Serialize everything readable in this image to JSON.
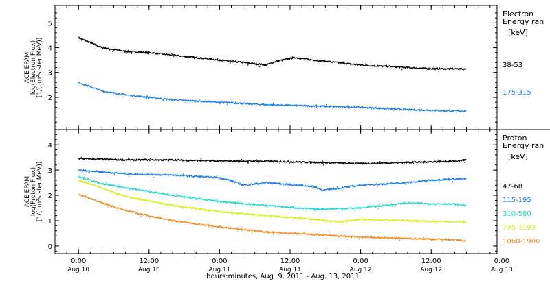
{
  "chart_data": [
    {
      "type": "line",
      "ylabel_lines": [
        "ACE EPAM",
        "log(Electron Flux)",
        "[1/(cm²s ster MeV)]"
      ],
      "ylim": [
        0.7,
        5.7
      ],
      "yticks": [
        2,
        3,
        4,
        5
      ],
      "legend": {
        "title_lines": [
          "Electron",
          "Energy ran"
        ],
        "units": "[keV]"
      },
      "series": [
        {
          "name": "38-53",
          "color": "#000000",
          "x": [
            0,
            0.5,
            1,
            1.5,
            2,
            2.5,
            3,
            3.5,
            4,
            4.2,
            4.6,
            5,
            5.5,
            6,
            6.5,
            7,
            7.5,
            8,
            8.25
          ],
          "y": [
            4.4,
            4.0,
            3.85,
            3.8,
            3.7,
            3.6,
            3.5,
            3.4,
            3.3,
            3.45,
            3.6,
            3.5,
            3.4,
            3.3,
            3.25,
            3.2,
            3.15,
            3.15,
            3.15
          ]
        },
        {
          "name": "175-315",
          "color": "#1f7fe0",
          "x": [
            0,
            0.5,
            1,
            1.5,
            2,
            3,
            4,
            5,
            6,
            7,
            8,
            8.25
          ],
          "y": [
            2.6,
            2.25,
            2.1,
            2.0,
            1.9,
            1.8,
            1.7,
            1.65,
            1.6,
            1.5,
            1.45,
            1.45
          ]
        }
      ]
    },
    {
      "type": "line",
      "ylabel_lines": [
        "ACE EPAM",
        "log(Proton Flux)",
        "[1/(cm²s ster MeV)]"
      ],
      "ylim": [
        -0.3,
        4.6
      ],
      "yticks": [
        0,
        1,
        2,
        3,
        4
      ],
      "legend": {
        "title_lines": [
          "Proton",
          "Energy ran"
        ],
        "units": "[keV]"
      },
      "series": [
        {
          "name": "47-68",
          "color": "#000000",
          "x": [
            0,
            1,
            2,
            3,
            4,
            5,
            6,
            7,
            8,
            8.25
          ],
          "y": [
            3.45,
            3.4,
            3.4,
            3.35,
            3.35,
            3.3,
            3.25,
            3.3,
            3.35,
            3.4
          ]
        },
        {
          "name": "115-195",
          "color": "#1f7fe0",
          "x": [
            0,
            1,
            2,
            3,
            3.3,
            3.5,
            4,
            5,
            5.2,
            6,
            7,
            7.5,
            8,
            8.25
          ],
          "y": [
            3.0,
            2.85,
            2.8,
            2.7,
            2.55,
            2.4,
            2.5,
            2.35,
            2.2,
            2.4,
            2.5,
            2.6,
            2.65,
            2.65
          ]
        },
        {
          "name": "310-580",
          "color": "#25d8d0",
          "x": [
            0,
            0.5,
            1,
            2,
            3,
            4,
            5,
            6,
            7,
            8,
            8.25
          ],
          "y": [
            2.75,
            2.45,
            2.3,
            2.0,
            1.75,
            1.6,
            1.45,
            1.5,
            1.7,
            1.65,
            1.6
          ]
        },
        {
          "name": "795-1193",
          "color": "#d9ee1c",
          "x": [
            0,
            0.5,
            1,
            2,
            3,
            4,
            5,
            5.5,
            6,
            7,
            8,
            8.25
          ],
          "y": [
            2.6,
            2.3,
            1.95,
            1.6,
            1.35,
            1.2,
            1.05,
            0.95,
            1.05,
            1.0,
            0.95,
            0.95
          ]
        },
        {
          "name": "1060-1900",
          "color": "#f08a1c",
          "x": [
            0,
            0.5,
            1,
            2,
            3,
            4,
            5,
            6,
            7,
            8,
            8.25
          ],
          "y": [
            2.05,
            1.7,
            1.4,
            1.0,
            0.75,
            0.55,
            0.45,
            0.35,
            0.3,
            0.25,
            0.2
          ]
        }
      ]
    }
  ],
  "x_axis": {
    "xlim": [
      -0.5,
      8.9
    ],
    "ticks": [
      {
        "x": 0,
        "time": "0:00",
        "date": "Aug.10"
      },
      {
        "x": 1.5,
        "time": "12:00",
        "date": "Aug.10"
      },
      {
        "x": 3,
        "time": "0:00",
        "date": "Aug.11"
      },
      {
        "x": 4.5,
        "time": "12:00",
        "date": "Aug.11"
      },
      {
        "x": 6,
        "time": "0:00",
        "date": "Aug.12"
      },
      {
        "x": 7.5,
        "time": "12:00",
        "date": "Aug.12"
      },
      {
        "x": 9,
        "time": "0:00",
        "date": "Aug.13"
      }
    ],
    "label": "hours:minutes, Aug.  9, 2011 - Aug. 13, 2011"
  }
}
